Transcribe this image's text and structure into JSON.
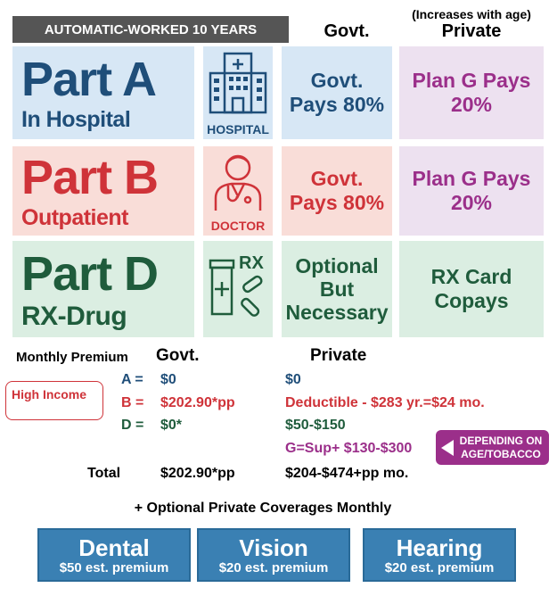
{
  "header": {
    "banner": "AUTOMATIC-WORKED 10 YEARS",
    "govt": "Govt.",
    "private_note": "(Increases with age)",
    "private": "Private"
  },
  "parts": [
    {
      "title": "Part A",
      "subtitle": "In Hospital",
      "icon_label": "HOSPITAL",
      "govt": "Govt. Pays 80%",
      "private": "Plan G Pays 20%"
    },
    {
      "title": "Part B",
      "subtitle": "Outpatient",
      "icon_label": "DOCTOR",
      "govt": "Govt. Pays 80%",
      "private": "Plan G Pays 20%"
    },
    {
      "title": "Part D",
      "subtitle": "RX-Drug",
      "icon_label": "RX",
      "govt": "Optional But Necessary",
      "private": "RX Card Copays"
    }
  ],
  "premium": {
    "label": "Monthly Premium",
    "govt_header": "Govt.",
    "private_header": "Private",
    "high_income": "High Income",
    "rows": [
      {
        "label": "A =",
        "govt": "$0",
        "private": "$0"
      },
      {
        "label": "B =",
        "govt": "$202.90*pp",
        "private": "Deductible - $283 yr.=$24 mo."
      },
      {
        "label": "D =",
        "govt": "$0*",
        "private": "$50-$150"
      }
    ],
    "extra": "G=Sup+ $130-$300",
    "callout": "DEPENDING ON AGE/TOBACCO",
    "total_label": "Total",
    "total_govt": "$202.90*pp",
    "total_private": "$204-$474+pp mo."
  },
  "optional": {
    "heading": "+ Optional Private Coverages Monthly",
    "items": [
      {
        "name": "Dental",
        "price": "$50 est. premium"
      },
      {
        "name": "Vision",
        "price": "$20 est. premium"
      },
      {
        "name": "Hearing",
        "price": "$20 est. premium"
      }
    ]
  }
}
